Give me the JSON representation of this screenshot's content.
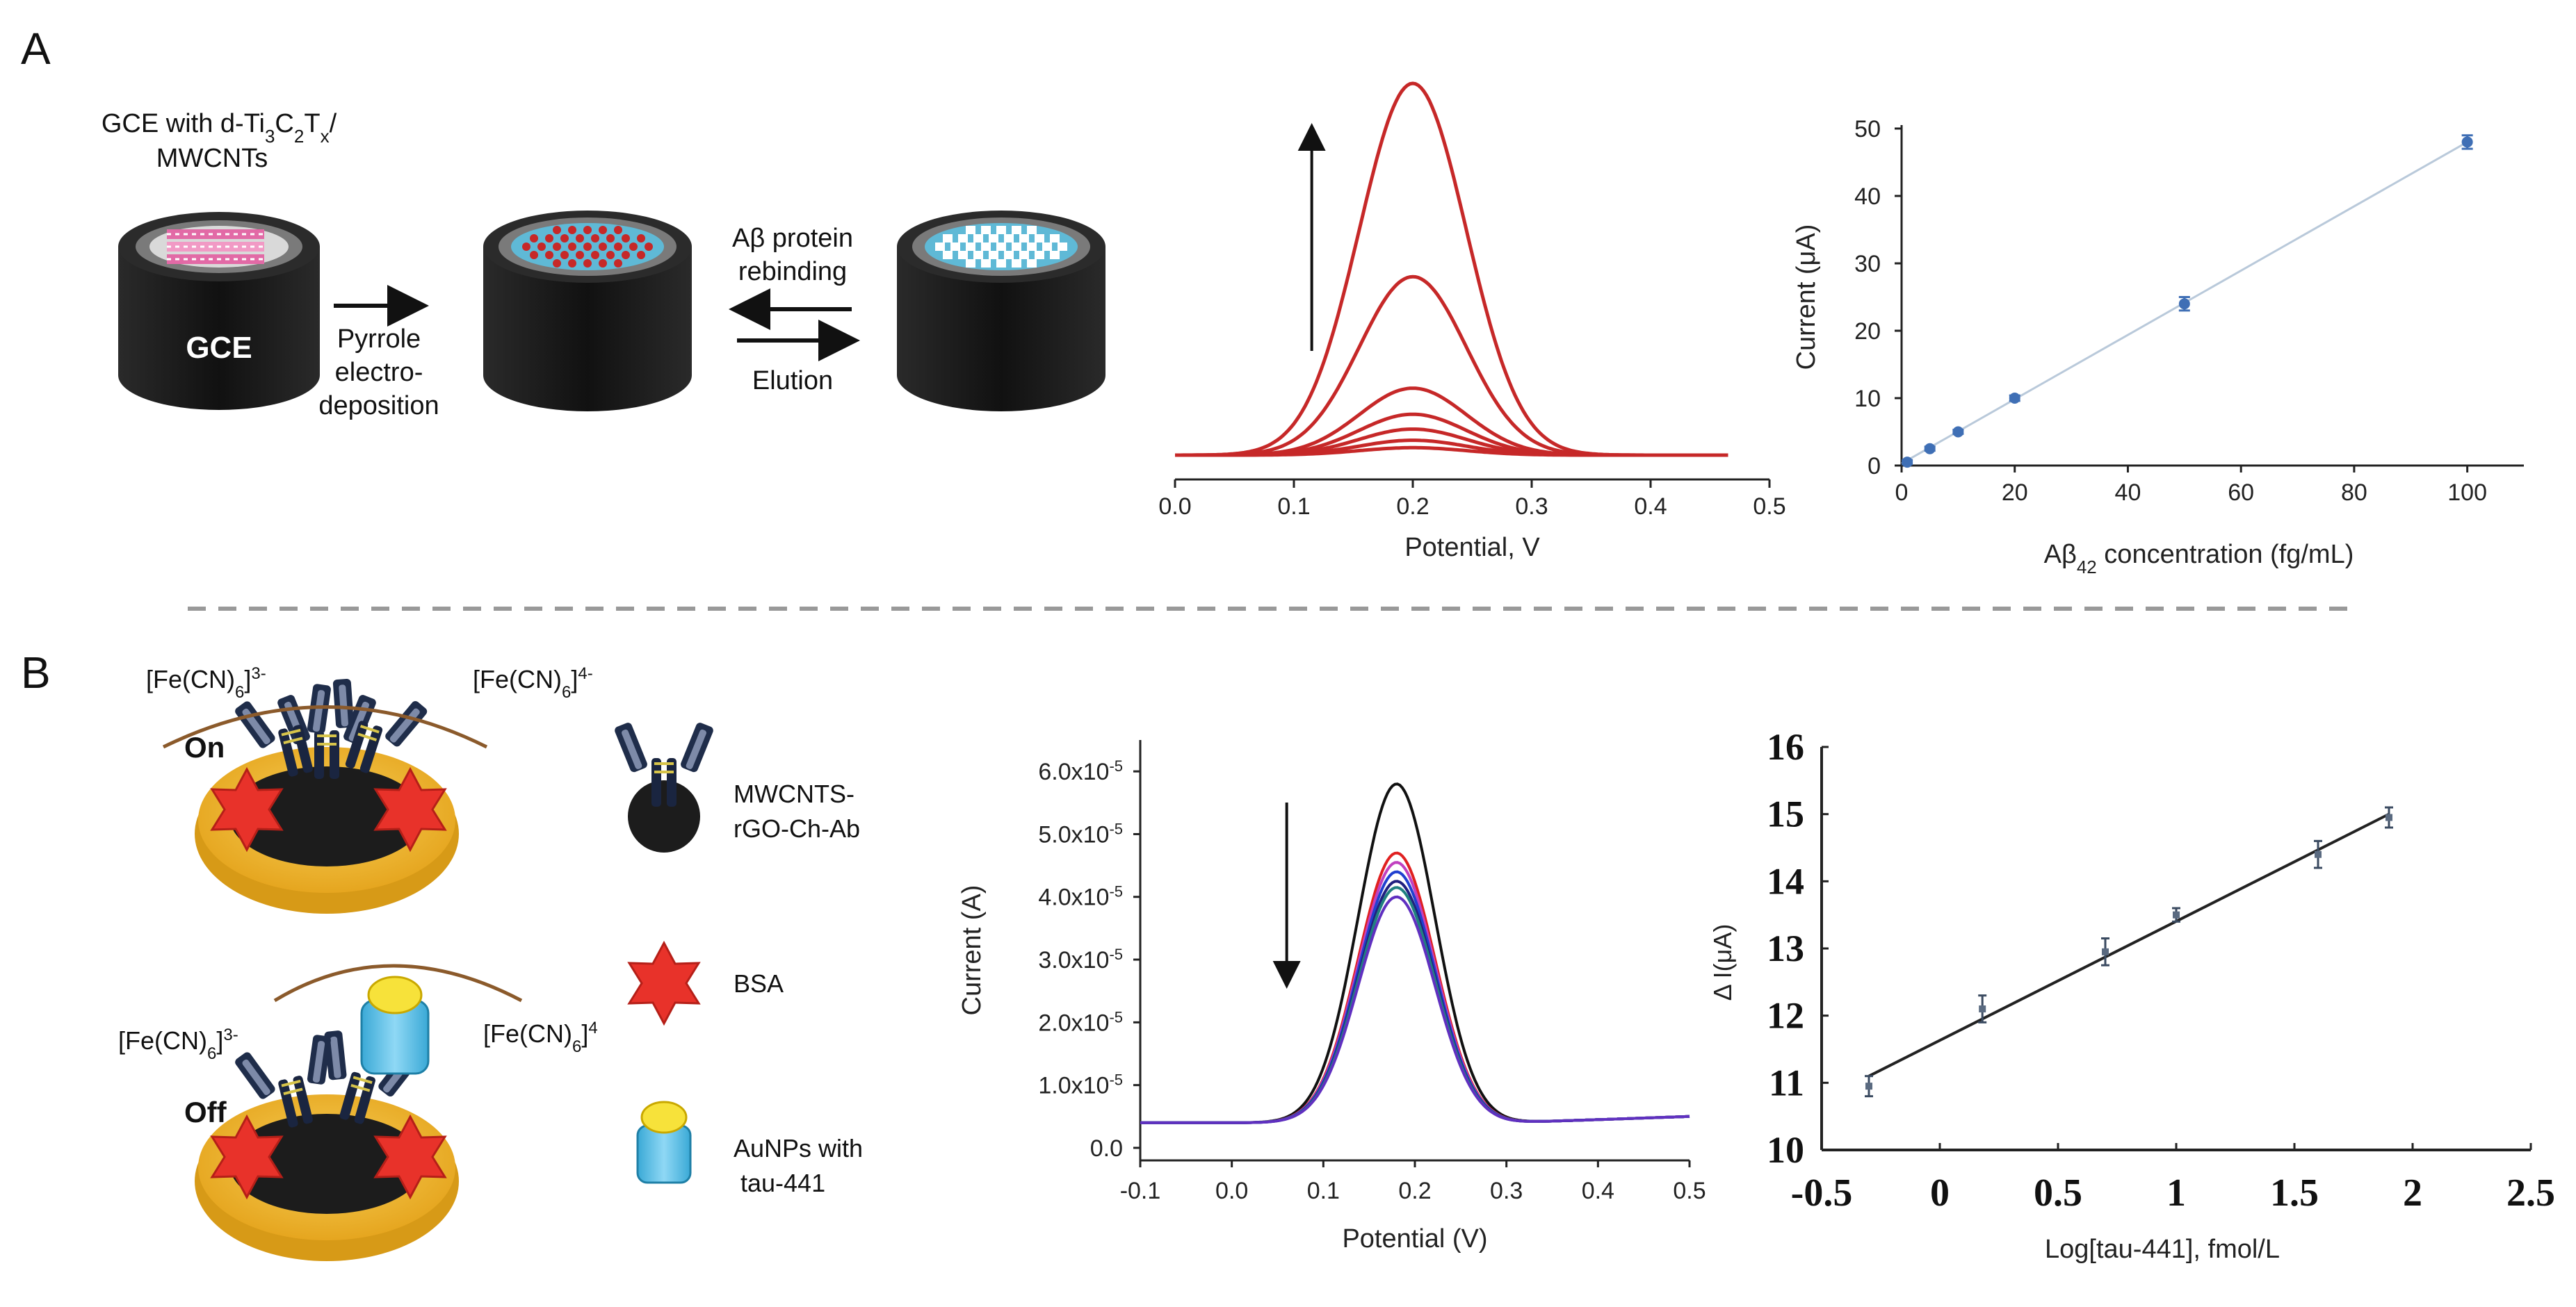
{
  "panel_a": {
    "label": "A",
    "schematic": {
      "gce_label_line1": "GCE with d-Ti",
      "gce_sub1": "3",
      "gce_mid1": "C",
      "gce_sub2": "2",
      "gce_mid2": "T",
      "gce_sub3": "x",
      "gce_tail": "/",
      "gce_label_line2": "MWCNTs",
      "electrode_label": "GCE",
      "step1_line1": "Pyrrole",
      "step1_line2": "electro-",
      "step1_line3": "deposition",
      "rebind_line1": "Aβ protein",
      "rebind_line2": "rebinding",
      "elution": "Elution"
    }
  },
  "panel_b": {
    "label": "B",
    "schematic": {
      "on": "On",
      "off": "Off",
      "fe3_main": "[Fe(CN)",
      "fe_sub": "6",
      "fe_close": "]",
      "fe3_sup": "3-",
      "fe4_sup": "4-",
      "fe4_sup_short": "4",
      "legend_ab_line1": "MWCNTS-",
      "legend_ab_line2": "rGO-Ch-Ab",
      "legend_bsa": "BSA",
      "legend_au_line1": "AuNPs with",
      "legend_au_line2": "tau-441"
    }
  },
  "colors": {
    "red_curve": "#c62828",
    "blue_point": "#3f6fb5",
    "gold": "#f2b52a",
    "dark": "#1e1e1e",
    "star": "#e8322a",
    "cyan": "#4fb3d9"
  },
  "chart_data": [
    {
      "type": "line",
      "id": "a_dpv",
      "title": "",
      "xlabel": "Potential, V",
      "ylabel": "",
      "xlim": [
        0.0,
        0.5
      ],
      "x_ticks": [
        "0.0",
        "0.1",
        "0.2",
        "0.3",
        "0.4",
        "0.5"
      ],
      "y_ticks": [],
      "peak_center": 0.2,
      "peak_heights_relative": [
        1.0,
        0.48,
        0.18,
        0.11,
        0.07,
        0.04,
        0.02
      ],
      "arrow": "up"
    },
    {
      "type": "scatter",
      "id": "a_calib",
      "xlabel": "Aβ",
      "xlabel_sub": "42",
      "xlabel_tail": " concentration (fg/mL)",
      "ylabel": "Current (μA)",
      "xlim": [
        0,
        110
      ],
      "ylim": [
        0,
        50
      ],
      "x_ticks": [
        "0",
        "20",
        "40",
        "60",
        "80",
        "100"
      ],
      "y_ticks": [
        "0",
        "10",
        "20",
        "30",
        "40",
        "50"
      ],
      "x": [
        1,
        5,
        10,
        20,
        50,
        100
      ],
      "y": [
        0.5,
        2.5,
        5,
        10,
        24,
        48
      ],
      "err": [
        0.3,
        0.3,
        0.3,
        0.4,
        1.0,
        1.0
      ],
      "fit": [
        [
          0,
          0.3
        ],
        [
          100,
          48
        ]
      ]
    },
    {
      "type": "line",
      "id": "b_dpv",
      "xlabel": "Potential (V)",
      "ylabel": "Current (A)",
      "xlim": [
        -0.1,
        0.5
      ],
      "ylim": [
        -2e-06,
        6.5e-05
      ],
      "x_ticks": [
        "-0.1",
        "0.0",
        "0.1",
        "0.2",
        "0.3",
        "0.4",
        "0.5"
      ],
      "y_tick_mantissa": [
        "0.0",
        "1.0x10",
        "2.0x10",
        "3.0x10",
        "4.0x10",
        "5.0x10",
        "6.0x10"
      ],
      "y_tick_exp": "-5",
      "baseline": 4e-06,
      "peak_center": 0.18,
      "series": [
        {
          "name": "black",
          "color": "#111111",
          "peak": 5.8e-05
        },
        {
          "name": "red",
          "color": "#e02020",
          "peak": 4.7e-05
        },
        {
          "name": "magenta",
          "color": "#c040c0",
          "peak": 4.55e-05
        },
        {
          "name": "blue",
          "color": "#2040d0",
          "peak": 4.4e-05
        },
        {
          "name": "navy",
          "color": "#202080",
          "peak": 4.25e-05
        },
        {
          "name": "teal",
          "color": "#208080",
          "peak": 4.15e-05
        },
        {
          "name": "purple",
          "color": "#6030c0",
          "peak": 4e-05
        }
      ],
      "arrow": "down"
    },
    {
      "type": "scatter",
      "id": "b_calib",
      "xlabel": "Log[tau-441], fmol/L",
      "ylabel": "Δ I(μA)",
      "xlim": [
        -0.5,
        2.5
      ],
      "ylim": [
        10,
        16
      ],
      "x_ticks": [
        "-0.5",
        "0",
        "0.5",
        "1",
        "1.5",
        "2",
        "2.5"
      ],
      "y_ticks": [
        "10",
        "11",
        "12",
        "13",
        "14",
        "15",
        "16"
      ],
      "x": [
        -0.3,
        0.18,
        0.7,
        1.0,
        1.6,
        1.9
      ],
      "y": [
        10.95,
        12.1,
        12.95,
        13.5,
        14.4,
        14.95
      ],
      "err": [
        0.15,
        0.2,
        0.2,
        0.1,
        0.2,
        0.15
      ],
      "fit": [
        [
          -0.3,
          11.1
        ],
        [
          1.9,
          15.0
        ]
      ]
    }
  ]
}
